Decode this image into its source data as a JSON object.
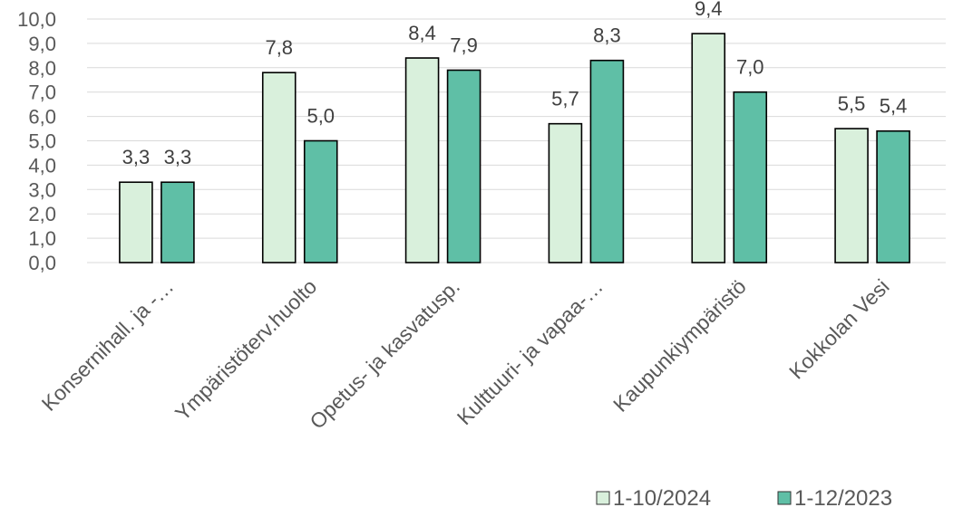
{
  "chart_data": {
    "type": "bar",
    "categories": [
      "Konsernihall. ja -…",
      "Ympäristöterv.huolto",
      "Opetus- ja kasvatusp.",
      "Kulttuuri- ja vapaa-…",
      "Kaupunkiympäristö",
      "Kokkolan Vesi"
    ],
    "series": [
      {
        "name": "1-10/2024",
        "values": [
          3.3,
          7.8,
          8.4,
          5.7,
          9.4,
          5.5
        ],
        "labels": [
          "3,3",
          "7,8",
          "8,4",
          "5,7",
          "9,4",
          "5,5"
        ],
        "color": "#d9f0dc"
      },
      {
        "name": "1-12/2023",
        "values": [
          3.3,
          5.0,
          7.9,
          8.3,
          7.0,
          5.4
        ],
        "labels": [
          "3,3",
          "5,0",
          "7,9",
          "8,3",
          "7,0",
          "5,4"
        ],
        "color": "#5fbfa6"
      }
    ],
    "yticks": [
      "0,0",
      "1,0",
      "2,0",
      "3,0",
      "4,0",
      "5,0",
      "6,0",
      "7,0",
      "8,0",
      "9,0",
      "10,0"
    ],
    "ylim": [
      0,
      10
    ],
    "grid": true,
    "legend": "bottom-right",
    "title": "",
    "xlabel": "",
    "ylabel": ""
  }
}
